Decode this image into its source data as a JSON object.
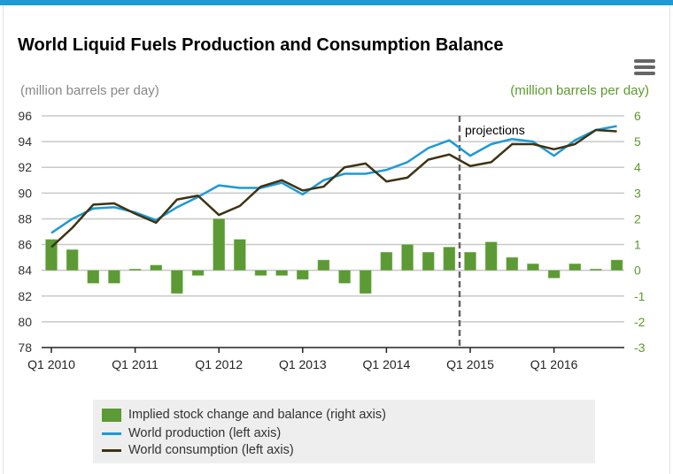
{
  "colors": {
    "accent": "#1d9ad6",
    "production": "#1d9ad6",
    "consumption": "#3e3312",
    "balance": "#5c9a35",
    "right_axis": "#5c9a2c"
  },
  "menu_icon": "hamburger-menu-icon",
  "chart_data": {
    "type": "bar+line",
    "title": "World Liquid Fuels Production and Consumption Balance",
    "ylabel_left": "(million barrels per day)",
    "ylabel_right": "(million barrels per day)",
    "ylim_left": [
      78,
      96
    ],
    "ylim_right": [
      -3,
      6
    ],
    "yticks_left": [
      "78",
      "80",
      "82",
      "84",
      "86",
      "88",
      "90",
      "92",
      "94",
      "96"
    ],
    "yticks_right": [
      "-3",
      "-2",
      "-1",
      "0",
      "1",
      "2",
      "3",
      "4",
      "5",
      "6"
    ],
    "grid": true,
    "x": [
      "Q1 2010",
      "Q2 2010",
      "Q3 2010",
      "Q4 2010",
      "Q1 2011",
      "Q2 2011",
      "Q3 2011",
      "Q4 2011",
      "Q1 2012",
      "Q2 2012",
      "Q3 2012",
      "Q4 2012",
      "Q1 2013",
      "Q2 2013",
      "Q3 2013",
      "Q4 2013",
      "Q1 2014",
      "Q2 2014",
      "Q3 2014",
      "Q4 2014",
      "Q1 2015",
      "Q2 2015",
      "Q3 2015",
      "Q4 2015",
      "Q1 2016",
      "Q2 2016",
      "Q3 2016",
      "Q4 2016"
    ],
    "xtick_labels": [
      "Q1 2010",
      "Q1 2011",
      "Q1 2012",
      "Q1 2013",
      "Q1 2014",
      "Q1 2015",
      "Q1 2016"
    ],
    "annotation": "projections",
    "projection_start": "Q1 2015",
    "series": [
      {
        "name": "Implied stock change and balance (right axis)",
        "type": "bar",
        "axis": "right",
        "values": [
          1.2,
          0.8,
          -0.5,
          -0.5,
          0.05,
          0.2,
          -0.9,
          -0.2,
          2.0,
          1.2,
          -0.2,
          -0.2,
          -0.35,
          0.4,
          -0.5,
          -0.9,
          0.7,
          1.0,
          0.7,
          0.9,
          0.7,
          1.1,
          0.5,
          0.25,
          -0.3,
          0.25,
          0.05,
          0.4
        ]
      },
      {
        "name": "World production (left axis)",
        "type": "line",
        "axis": "left",
        "values": [
          86.9,
          88.0,
          88.8,
          88.9,
          88.5,
          87.9,
          88.9,
          89.7,
          90.6,
          90.4,
          90.4,
          90.8,
          89.9,
          91.0,
          91.5,
          91.5,
          91.8,
          92.4,
          93.5,
          94.1,
          92.9,
          93.8,
          94.2,
          94.0,
          92.9,
          94.1,
          94.9,
          95.2
        ]
      },
      {
        "name": "World consumption (left axis)",
        "type": "line",
        "axis": "left",
        "values": [
          85.8,
          87.3,
          89.1,
          89.2,
          88.4,
          87.7,
          89.5,
          89.8,
          88.3,
          89.0,
          90.5,
          91.0,
          90.2,
          90.5,
          92.0,
          92.3,
          90.9,
          91.2,
          92.6,
          93.0,
          92.1,
          92.4,
          93.8,
          93.8,
          93.4,
          93.8,
          94.9,
          94.8
        ]
      }
    ],
    "legend_position": "bottom"
  }
}
